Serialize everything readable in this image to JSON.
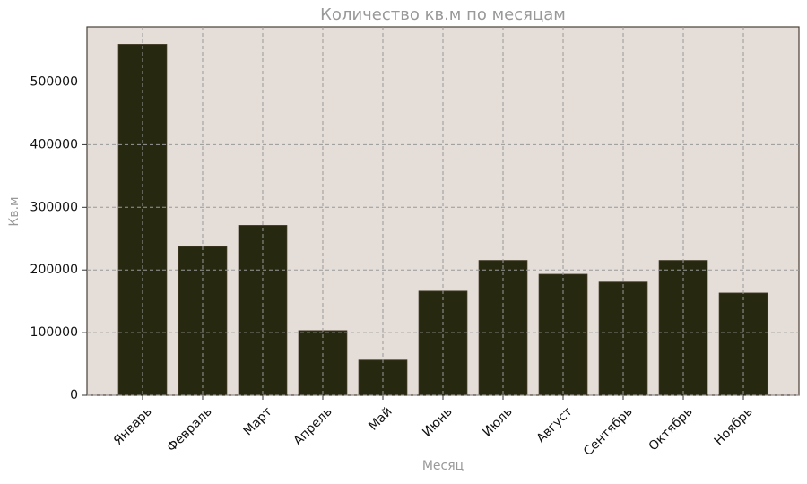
{
  "chart_data": {
    "type": "bar",
    "title": "Количество кв.м по месяцам",
    "x_label": "Месяц",
    "y_label": "Кв.м",
    "categories": [
      "Январь",
      "Февраль",
      "Март",
      "Апрель",
      "Май",
      "Июнь",
      "Июль",
      "Август",
      "Сентябрь",
      "Октябрь",
      "Ноябрь"
    ],
    "values": [
      560000,
      237000,
      271000,
      103000,
      56000,
      166000,
      215000,
      193000,
      180500,
      215000,
      163000
    ],
    "color": "#26280f",
    "ylim": [
      0,
      588000
    ],
    "yticks": [
      0,
      100000,
      200000,
      300000,
      400000,
      500000
    ],
    "grid": true
  }
}
